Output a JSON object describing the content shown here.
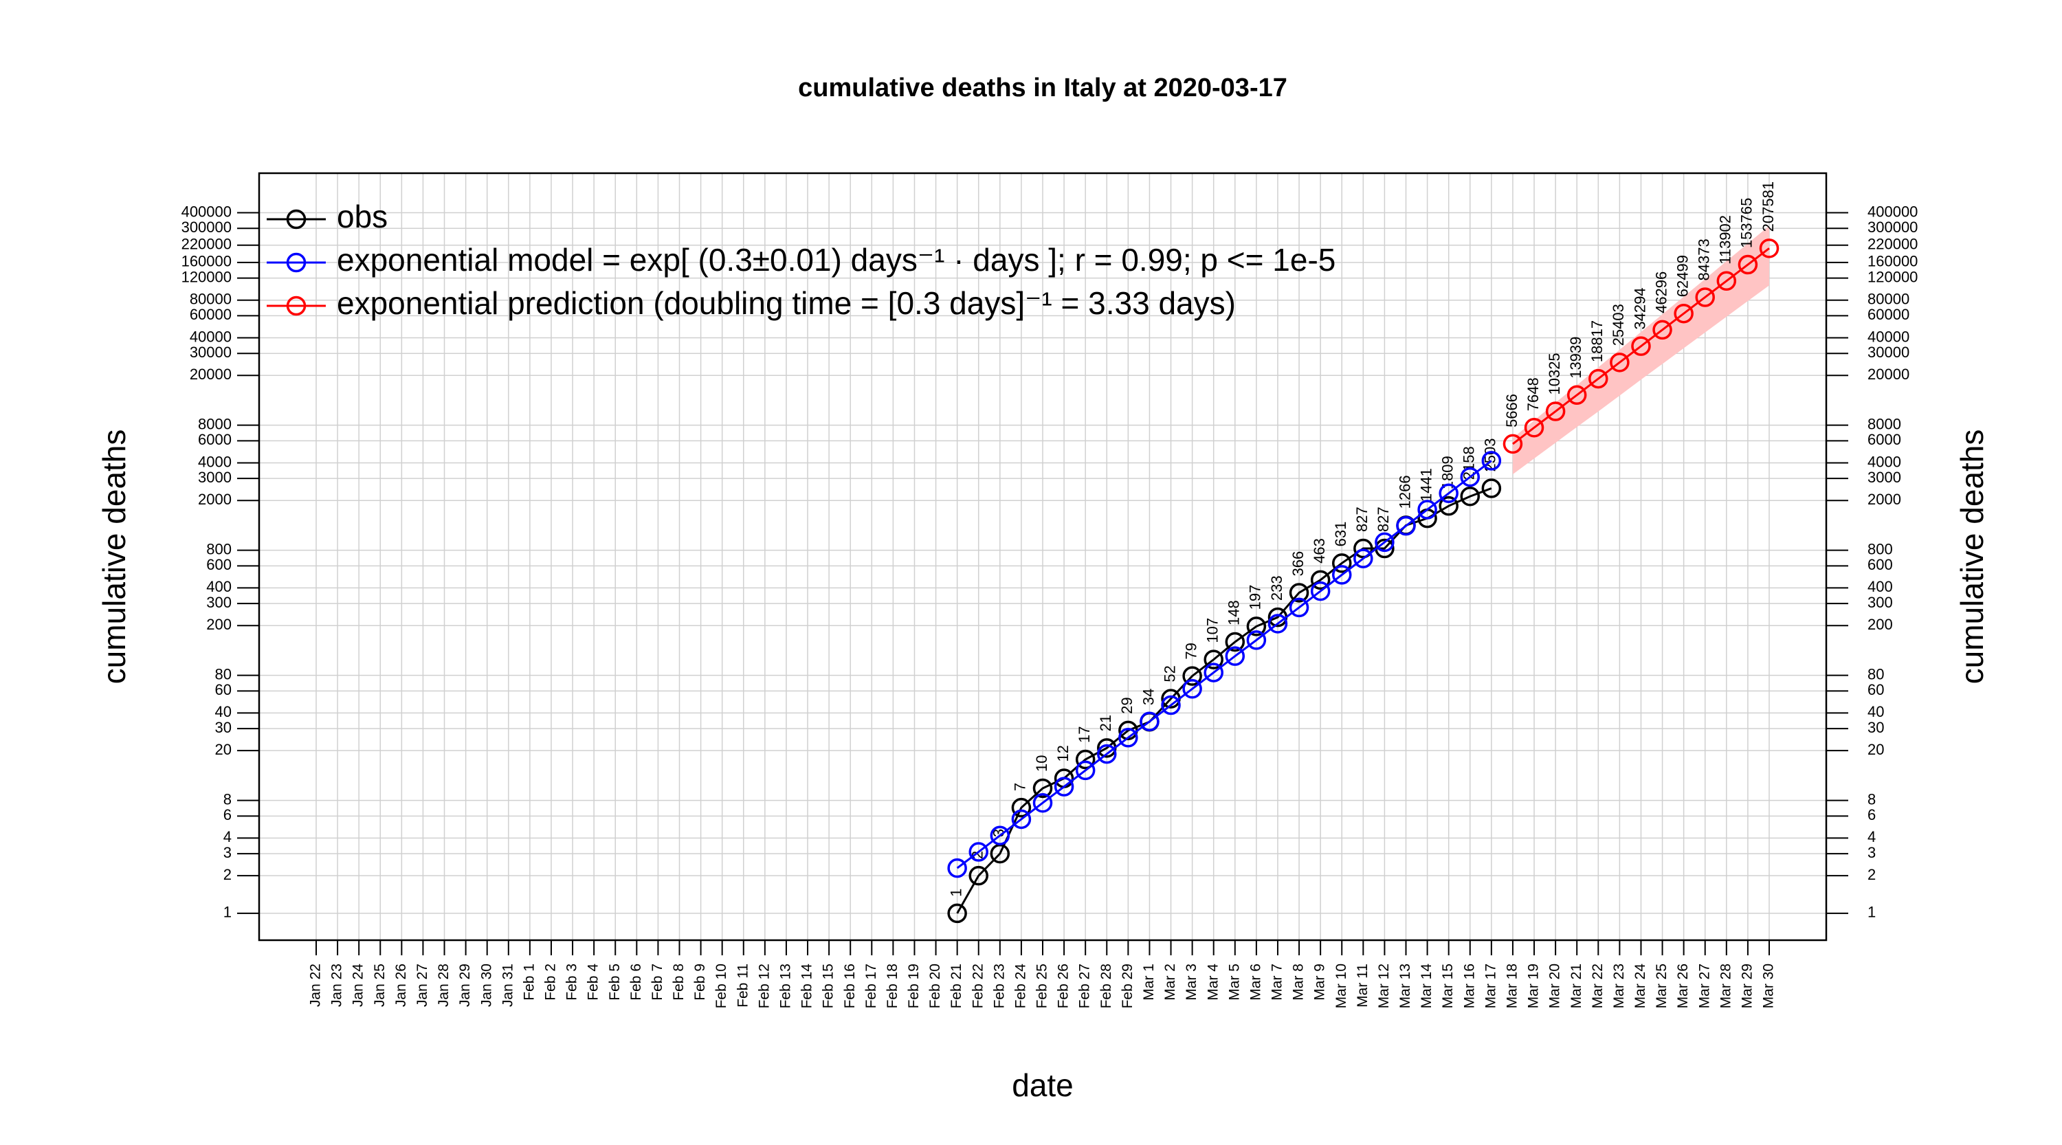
{
  "chart_data": {
    "type": "line",
    "title": "cumulative deaths in Italy at 2020-03-17",
    "xlabel": "date",
    "ylabel": "cumulative deaths",
    "log_y": true,
    "grid": true,
    "legend": "top-left",
    "categories": [
      "Jan 22",
      "Jan 23",
      "Jan 24",
      "Jan 25",
      "Jan 26",
      "Jan 27",
      "Jan 28",
      "Jan 29",
      "Jan 30",
      "Jan 31",
      "Feb 1",
      "Feb 2",
      "Feb 3",
      "Feb 4",
      "Feb 5",
      "Feb 6",
      "Feb 7",
      "Feb 8",
      "Feb 9",
      "Feb 10",
      "Feb 11",
      "Feb 12",
      "Feb 13",
      "Feb 14",
      "Feb 15",
      "Feb 16",
      "Feb 17",
      "Feb 18",
      "Feb 19",
      "Feb 20",
      "Feb 21",
      "Feb 22",
      "Feb 23",
      "Feb 24",
      "Feb 25",
      "Feb 26",
      "Feb 27",
      "Feb 28",
      "Feb 29",
      "Mar 1",
      "Mar 2",
      "Mar 3",
      "Mar 4",
      "Mar 5",
      "Mar 6",
      "Mar 7",
      "Mar 8",
      "Mar 9",
      "Mar 10",
      "Mar 11",
      "Mar 12",
      "Mar 13",
      "Mar 14",
      "Mar 15",
      "Mar 16",
      "Mar 17",
      "Mar 18",
      "Mar 19",
      "Mar 20",
      "Mar 21",
      "Mar 22",
      "Mar 23",
      "Mar 24",
      "Mar 25",
      "Mar 26",
      "Mar 27",
      "Mar 28",
      "Mar 29",
      "Mar 30"
    ],
    "ylim": [
      0.61,
      828000
    ],
    "yticks": [
      1,
      2,
      3,
      4,
      6,
      8,
      20,
      30,
      40,
      60,
      80,
      200,
      300,
      400,
      600,
      800,
      2000,
      3000,
      4000,
      6000,
      8000,
      20000,
      30000,
      40000,
      60000,
      80000,
      120000,
      160000,
      220000,
      300000,
      400000
    ],
    "band": {
      "color": "#ffc4c4",
      "lower": [
        null,
        null,
        null,
        null,
        null,
        null,
        null,
        null,
        null,
        null,
        null,
        null,
        null,
        null,
        null,
        null,
        null,
        null,
        null,
        null,
        null,
        null,
        null,
        null,
        null,
        null,
        null,
        null,
        null,
        null,
        null,
        null,
        null,
        null,
        null,
        null,
        null,
        null,
        null,
        null,
        null,
        null,
        null,
        null,
        null,
        null,
        null,
        null,
        null,
        null,
        null,
        null,
        null,
        null,
        null,
        null,
        3240,
        4330,
        5790,
        7730,
        10300,
        13800,
        18500,
        24700,
        33000,
        44100,
        58900,
        78700,
        105000
      ],
      "upper": [
        null,
        null,
        null,
        null,
        null,
        null,
        null,
        null,
        null,
        null,
        null,
        null,
        null,
        null,
        null,
        null,
        null,
        null,
        null,
        null,
        null,
        null,
        null,
        null,
        null,
        null,
        null,
        null,
        null,
        null,
        null,
        null,
        null,
        null,
        null,
        null,
        null,
        null,
        null,
        null,
        null,
        null,
        null,
        null,
        null,
        null,
        null,
        null,
        null,
        null,
        null,
        null,
        null,
        null,
        null,
        null,
        6300,
        8730,
        12100,
        16700,
        23200,
        32100,
        44500,
        61600,
        85300,
        118000,
        164000,
        227000,
        314000
      ]
    },
    "series": [
      {
        "name": "obs",
        "color": "#000000",
        "labels": true,
        "values": [
          null,
          null,
          null,
          null,
          null,
          null,
          null,
          null,
          null,
          null,
          null,
          null,
          null,
          null,
          null,
          null,
          null,
          null,
          null,
          null,
          null,
          null,
          null,
          null,
          null,
          null,
          null,
          null,
          null,
          null,
          1,
          2,
          3,
          7,
          10,
          12,
          17,
          21,
          29,
          34,
          52,
          79,
          107,
          148,
          197,
          233,
          366,
          463,
          631,
          827,
          827,
          1266,
          1441,
          1809,
          2158,
          2503,
          null,
          null,
          null,
          null,
          null,
          null,
          null,
          null,
          null,
          null,
          null,
          null,
          null
        ]
      },
      {
        "name": "exponential model = exp[ (0.3±0.01) days⁻¹ · days ]; r = 0.99; p <= 1e-5",
        "color": "#0000ff",
        "labels": false,
        "values": [
          null,
          null,
          null,
          null,
          null,
          null,
          null,
          null,
          null,
          null,
          null,
          null,
          null,
          null,
          null,
          null,
          null,
          null,
          null,
          null,
          null,
          null,
          null,
          null,
          null,
          null,
          null,
          null,
          null,
          null,
          2.3,
          3.1,
          4.19,
          5.66,
          7.64,
          10.3,
          13.9,
          18.8,
          25.4,
          34.2,
          46.2,
          62.4,
          84.2,
          114,
          153,
          207,
          279,
          377,
          509,
          687,
          928,
          1253,
          1691,
          2282,
          3080,
          4158,
          null,
          null,
          null,
          null,
          null,
          null,
          null,
          null,
          null,
          null,
          null,
          null,
          null
        ]
      },
      {
        "name": "exponential prediction (doubling time = [0.3 days]⁻¹ = 3.33 days)",
        "color": "#ff0000",
        "labels": true,
        "values": [
          null,
          null,
          null,
          null,
          null,
          null,
          null,
          null,
          null,
          null,
          null,
          null,
          null,
          null,
          null,
          null,
          null,
          null,
          null,
          null,
          null,
          null,
          null,
          null,
          null,
          null,
          null,
          null,
          null,
          null,
          null,
          null,
          null,
          null,
          null,
          null,
          null,
          null,
          null,
          null,
          null,
          null,
          null,
          null,
          null,
          null,
          null,
          null,
          null,
          null,
          null,
          null,
          null,
          null,
          null,
          null,
          5666,
          7648,
          10325,
          13939,
          18817,
          25403,
          34294,
          46296,
          62499,
          84373,
          113902,
          153765,
          207581
        ]
      }
    ]
  }
}
